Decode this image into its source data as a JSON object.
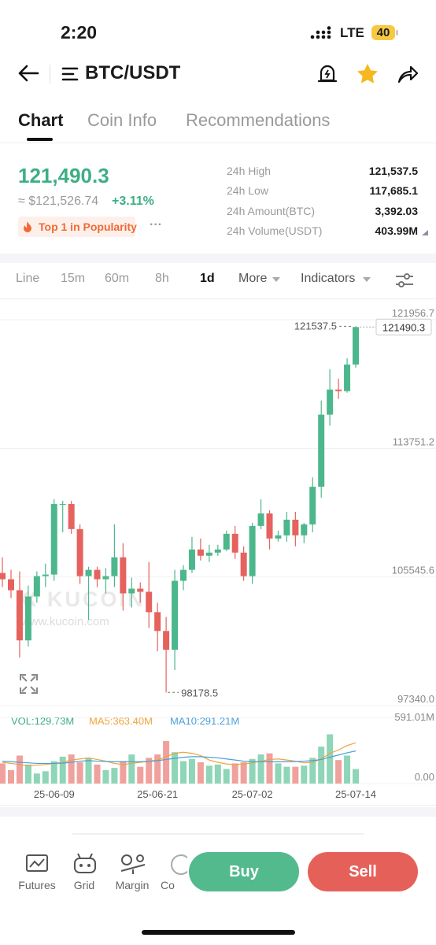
{
  "status_bar": {
    "time": "2:20",
    "network": "LTE",
    "battery": "40"
  },
  "header": {
    "pair": "BTC/USDT"
  },
  "tabs": [
    "Chart",
    "Coin Info",
    "Recommendations"
  ],
  "ticker": {
    "price": "121,490.3",
    "fiat_price": "≈ $121,526.74",
    "change": "+3.11%",
    "badge": "Top 1 in Popularity",
    "more": "···"
  },
  "stats": [
    {
      "label": "24h High",
      "value": "121,537.5"
    },
    {
      "label": "24h Low",
      "value": "117,685.1"
    },
    {
      "label": "24h Amount(BTC)",
      "value": "3,392.03"
    },
    {
      "label": "24h Volume(USDT)",
      "value": "403.99M"
    }
  ],
  "toolbar": {
    "intervals": [
      "Line",
      "15m",
      "60m",
      "8h",
      "1d"
    ],
    "more": "More",
    "indicators": "Indicators"
  },
  "watermark": {
    "logo": "KUCOIN",
    "url": "www.kucoin.com"
  },
  "chart_data": {
    "type": "candlestick",
    "categories": [
      null,
      null,
      null,
      null,
      null,
      null,
      "25-06-09",
      null,
      null,
      null,
      null,
      null,
      null,
      null,
      null,
      null,
      null,
      null,
      "25-06-21",
      null,
      null,
      null,
      null,
      null,
      null,
      null,
      null,
      null,
      null,
      "25-07-02",
      null,
      null,
      null,
      null,
      null,
      null,
      null,
      null,
      null,
      null,
      null,
      "25-07-14"
    ],
    "open": [
      105800,
      105400,
      104700,
      101500,
      104300,
      105600,
      105700,
      110200,
      110200,
      108600,
      105600,
      106000,
      105400,
      105600,
      106800,
      104500,
      104800,
      104600,
      103300,
      102100,
      100900,
      105300,
      106000,
      107300,
      106900,
      107100,
      107300,
      108300,
      107100,
      105600,
      108800,
      109600,
      108000,
      108200,
      109200,
      108200,
      108900,
      111300,
      115900,
      117500,
      117400,
      119100
    ],
    "high": [
      106800,
      106000,
      105900,
      105000,
      105900,
      106400,
      110500,
      110400,
      110400,
      108900,
      106200,
      106200,
      106100,
      108900,
      107700,
      105500,
      105200,
      106500,
      103900,
      103000,
      106000,
      106300,
      108100,
      108000,
      107600,
      107600,
      108500,
      108800,
      107500,
      109000,
      110500,
      109800,
      108500,
      109700,
      109700,
      109000,
      111900,
      116800,
      118800,
      118200,
      119500,
      121537.5
    ],
    "low": [
      104900,
      104200,
      100400,
      101100,
      103900,
      104900,
      105300,
      108400,
      108300,
      105100,
      102800,
      104900,
      104500,
      104900,
      103400,
      103600,
      103900,
      102300,
      100800,
      98178.5,
      99600,
      104700,
      105800,
      106600,
      106500,
      106900,
      107200,
      106700,
      105300,
      105100,
      108600,
      107300,
      107800,
      107800,
      107500,
      107700,
      108400,
      110600,
      115200,
      116900,
      117300,
      118900
    ],
    "close": [
      105400,
      104700,
      101500,
      104300,
      105600,
      105700,
      110200,
      110200,
      108600,
      105600,
      106000,
      105400,
      105600,
      106800,
      104500,
      104800,
      104600,
      103300,
      102100,
      100900,
      105300,
      106000,
      107300,
      106900,
      107100,
      107300,
      108300,
      107100,
      105600,
      108800,
      109600,
      108000,
      108200,
      109200,
      108200,
      108900,
      111300,
      115900,
      117500,
      117400,
      119100,
      121490.3
    ],
    "up_color": "#4cb78c",
    "down_color": "#e5625e",
    "ylim": [
      97340,
      121956.7
    ],
    "yticks": [
      121956.7,
      113751.2,
      105545.6,
      {
        "value": 97340,
        "label": "97340.0"
      }
    ],
    "grid": true,
    "volume": {
      "label": "VOL:129.73M",
      "values": [
        180,
        120,
        250,
        170,
        90,
        110,
        200,
        240,
        260,
        190,
        230,
        170,
        120,
        140,
        200,
        260,
        150,
        230,
        260,
        380,
        280,
        200,
        220,
        190,
        160,
        170,
        130,
        180,
        190,
        220,
        260,
        270,
        180,
        150,
        150,
        160,
        230,
        330,
        440,
        210,
        250,
        129.73
      ],
      "up_color": "#8fd5b8",
      "down_color": "#f0a19d",
      "ylim": [
        0,
        591.01
      ],
      "yticks": [
        {
          "value": 591.01,
          "label": "591.01M"
        },
        {
          "value": 0,
          "label": "0.00"
        }
      ],
      "ma": [
        {
          "name": "MA5:363.40M",
          "color": "#f0a33a",
          "values": [
            190,
            180,
            170,
            160,
            165,
            170,
            180,
            190,
            210,
            220,
            230,
            215,
            200,
            180,
            170,
            180,
            190,
            200,
            210,
            240,
            270,
            280,
            270,
            250,
            210,
            190,
            175,
            170,
            175,
            185,
            200,
            215,
            220,
            210,
            200,
            185,
            190,
            220,
            270,
            300,
            340,
            363.4
          ]
        },
        {
          "name": "MA10:291.21M",
          "color": "#4a9fd8",
          "values": [
            200,
            195,
            190,
            185,
            180,
            180,
            180,
            182,
            190,
            200,
            205,
            200,
            198,
            195,
            195,
            195,
            195,
            198,
            205,
            215,
            225,
            235,
            240,
            240,
            235,
            230,
            220,
            210,
            200,
            195,
            195,
            195,
            195,
            195,
            197,
            200,
            205,
            215,
            235,
            255,
            275,
            291.21
          ]
        }
      ]
    }
  },
  "actions": {
    "tools": [
      "Futures",
      "Grid",
      "Margin",
      "Co"
    ],
    "buy": "Buy",
    "sell": "Sell"
  }
}
